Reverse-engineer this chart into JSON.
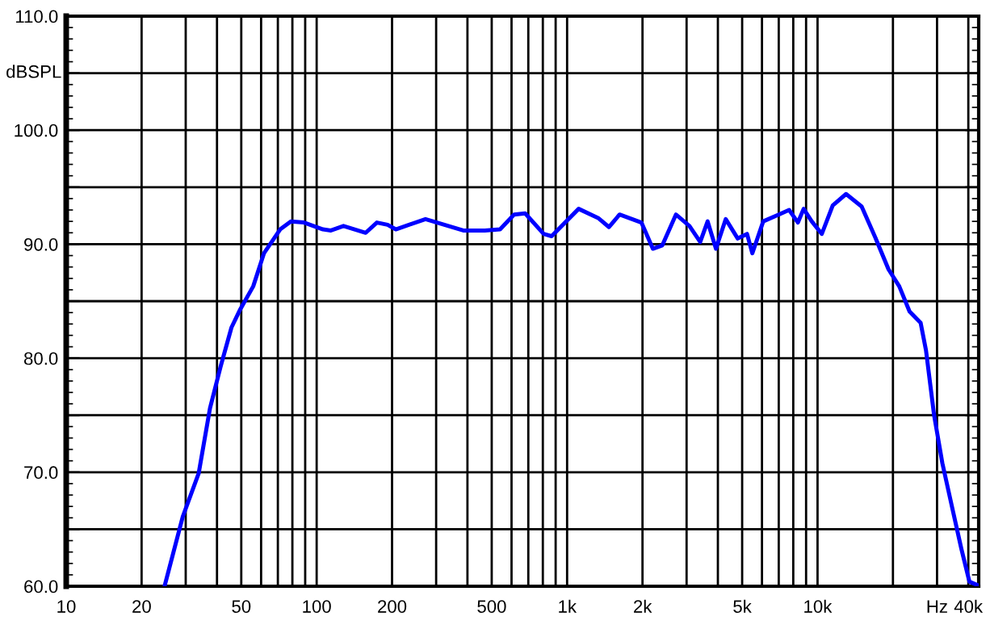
{
  "chart_data": {
    "type": "line",
    "ylabel": "dBSPL",
    "log": "x",
    "x": [
      24.7,
      29.2,
      33.8,
      37.5,
      41.4,
      45.7,
      49.3,
      55.8,
      61.6,
      71.5,
      78.9,
      89,
      106,
      114,
      128,
      157,
      174,
      192,
      207,
      272,
      385,
      469,
      540,
      614,
      680,
      806,
      867,
      1112,
      1330,
      1470,
      1620,
      1980,
      2200,
      2400,
      2720,
      3080,
      3400,
      3640,
      3930,
      4300,
      4800,
      5230,
      5490,
      6070,
      7000,
      7700,
      8350,
      8800,
      9480,
      10400,
      11500,
      13000,
      15000,
      17000,
      19200,
      21200,
      23300,
      25800,
      27100,
      29200,
      31500,
      34800,
      37500,
      40400,
      43500
    ],
    "series": [
      {
        "color": "#0000ff",
        "values": [
          60,
          66.1,
          69.9,
          75.6,
          79.3,
          82.7,
          84.2,
          86.3,
          89.2,
          91.3,
          92.0,
          91.9,
          91.3,
          91.2,
          91.6,
          91.0,
          91.9,
          91.7,
          91.3,
          92.2,
          91.2,
          91.2,
          91.3,
          92.6,
          92.7,
          90.9,
          90.7,
          93.1,
          92.3,
          91.5,
          92.6,
          91.9,
          89.6,
          89.9,
          92.6,
          91.6,
          90.2,
          92.0,
          89.6,
          92.2,
          90.5,
          90.9,
          89.2,
          92.0,
          92.6,
          93.0,
          91.9,
          93.1,
          92.0,
          90.9,
          93.4,
          94.4,
          93.3,
          90.6,
          87.8,
          86.3,
          84.1,
          83.1,
          80.7,
          75.0,
          70.8,
          66.5,
          63.3,
          60.4,
          60.1
        ]
      }
    ],
    "xlim": [
      10,
      44000
    ],
    "xticks": [
      10,
      20,
      50,
      100,
      200,
      500,
      {
        "value": 1000,
        "label": "1k"
      },
      {
        "value": 2000,
        "label": "2k"
      },
      {
        "value": 5000,
        "label": "5k"
      },
      {
        "value": 10000,
        "label": "10k"
      },
      {
        "value": 30000,
        "label": "Hz"
      },
      {
        "value": 40000,
        "label": "40k"
      }
    ],
    "ylim": [
      60,
      110
    ],
    "yticks": [
      {
        "value": 60,
        "label": "60.0"
      },
      {
        "value": 65,
        "label": null
      },
      {
        "value": 70,
        "label": "70.0"
      },
      {
        "value": 75,
        "label": null
      },
      {
        "value": 80,
        "label": "80.0"
      },
      {
        "value": 85,
        "label": null
      },
      {
        "value": 90,
        "label": "90.0"
      },
      {
        "value": 95,
        "label": null
      },
      {
        "value": 100,
        "label": "100.0"
      },
      {
        "value": 105,
        "label": null
      },
      {
        "value": 110,
        "label": "110.0"
      }
    ],
    "grid": true,
    "line_style": "solid",
    "marker": "none"
  }
}
